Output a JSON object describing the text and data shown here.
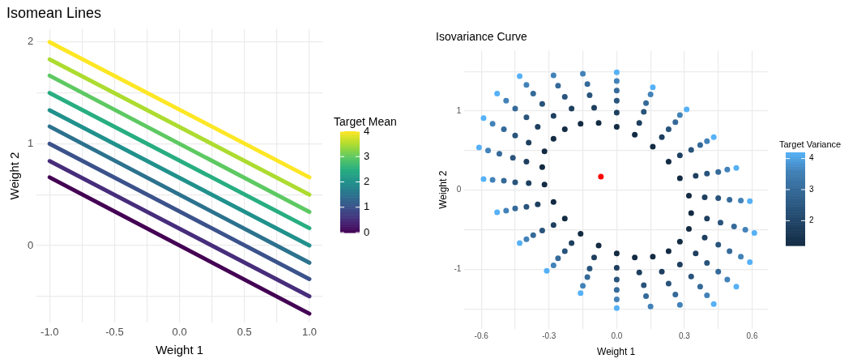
{
  "chart_data": [
    {
      "type": "line",
      "title": "Isomean Lines",
      "xlabel": "Weight 1",
      "ylabel": "Weight 2",
      "clabel": "Target Mean",
      "xlim": [
        -1.1,
        1.1
      ],
      "ylim": [
        -0.76,
        2.13
      ],
      "xticks": [
        {
          "value": -1,
          "label": "-1.0"
        },
        {
          "value": -0.75,
          "label": null
        },
        {
          "value": -0.5,
          "label": "-0.5"
        },
        {
          "value": -0.25,
          "label": null
        },
        {
          "value": 0,
          "label": "0.0"
        },
        {
          "value": 0.25,
          "label": null
        },
        {
          "value": 0.5,
          "label": "0.5"
        },
        {
          "value": 0.75,
          "label": null
        },
        {
          "value": 1,
          "label": "1.0"
        }
      ],
      "yticks": [
        {
          "value": -0.5,
          "label": null
        },
        0,
        {
          "value": 0.5,
          "label": null
        },
        1,
        {
          "value": 1.5,
          "label": null
        },
        2
      ],
      "clim": [
        0,
        4
      ],
      "cticks": [
        0,
        1,
        2,
        3,
        4
      ],
      "grid": true,
      "series": [
        {
          "color": "#440154",
          "x": [
            -1,
            1
          ],
          "values": [
            0.67,
            -0.67
          ]
        },
        {
          "color": "#472d7b",
          "x": [
            -1,
            1
          ],
          "values": [
            0.83,
            -0.5
          ]
        },
        {
          "color": "#3b528b",
          "x": [
            -1,
            1
          ],
          "values": [
            1.0,
            -0.33
          ]
        },
        {
          "color": "#2c728e",
          "x": [
            -1,
            1
          ],
          "values": [
            1.17,
            -0.17
          ]
        },
        {
          "color": "#21918c",
          "x": [
            -1,
            1
          ],
          "values": [
            1.33,
            0
          ]
        },
        {
          "color": "#28ae80",
          "x": [
            -1,
            1
          ],
          "values": [
            1.5,
            0.17
          ]
        },
        {
          "color": "#5ec962",
          "x": [
            -1,
            1
          ],
          "values": [
            1.67,
            0.33
          ]
        },
        {
          "color": "#addc30",
          "x": [
            -1,
            1
          ],
          "values": [
            1.83,
            0.5
          ]
        },
        {
          "color": "#fde725",
          "x": [
            -1,
            1
          ],
          "values": [
            2.0,
            0.67
          ]
        }
      ]
    },
    {
      "type": "scatter",
      "title": "Isovariance Curve",
      "xlabel": "Weight 1",
      "ylabel": "Weight 2",
      "clabel": "Target Variance",
      "xlim": [
        -0.675,
        0.67
      ],
      "ylim": [
        -1.75,
        1.76
      ],
      "xticks": [
        -0.6,
        {
          "value": -0.45,
          "label": null
        },
        -0.3,
        {
          "value": -0.15,
          "label": null
        },
        {
          "value": 0,
          "label": "0.0"
        },
        {
          "value": 0.15,
          "label": null
        },
        0.3,
        {
          "value": 0.45,
          "label": null
        },
        0.6
      ],
      "yticks": [
        {
          "value": -1.5,
          "label": null
        },
        -1,
        {
          "value": -0.5,
          "label": null
        },
        0,
        {
          "value": 0.5,
          "label": null
        },
        1,
        {
          "value": 1.5,
          "label": null
        }
      ],
      "clim": [
        1.2,
        4.2
      ],
      "cticks": [
        2,
        3,
        4
      ],
      "grid": true,
      "series": [
        {
          "color": "#132b43",
          "x": [
            0.33,
            0.32,
            0.28,
            0.23,
            0.16,
            0.08,
            0,
            -0.08,
            -0.16,
            -0.23,
            -0.28,
            -0.32,
            -0.33,
            -0.32,
            -0.28,
            -0.23,
            -0.16,
            -0.08,
            0,
            0.08,
            0.16,
            0.23,
            0.28,
            0.32
          ],
          "values": [
            -0.29,
            -0.07,
            0.15,
            0.36,
            0.55,
            0.7,
            0.8,
            0.85,
            0.84,
            0.77,
            0.65,
            0.49,
            0.29,
            0.07,
            -0.15,
            -0.36,
            -0.55,
            -0.7,
            -0.8,
            -0.85,
            -0.84,
            -0.77,
            -0.65,
            -0.49
          ]
        },
        {
          "color": "#1e3f5f",
          "x": [
            0.4,
            0.39,
            0.35,
            0.28,
            0.2,
            0.1,
            0,
            -0.1,
            -0.2,
            -0.28,
            -0.35,
            -0.39,
            -0.4,
            -0.39,
            -0.35,
            -0.28,
            -0.2,
            -0.1,
            0,
            0.1,
            0.2,
            0.28,
            0.35,
            0.39
          ],
          "values": [
            -0.36,
            -0.09,
            0.18,
            0.44,
            0.67,
            0.85,
            0.98,
            1.04,
            1.03,
            0.94,
            0.8,
            0.6,
            0.36,
            0.09,
            -0.18,
            -0.44,
            -0.67,
            -0.85,
            -0.98,
            -1.04,
            -1.03,
            -0.94,
            -0.8,
            -0.6
          ]
        },
        {
          "color": "#29547b",
          "x": [
            0.46,
            0.45,
            0.4,
            0.33,
            0.23,
            0.12,
            0,
            -0.12,
            -0.23,
            -0.33,
            -0.4,
            -0.45,
            -0.46,
            -0.45,
            -0.4,
            -0.33,
            -0.23,
            -0.12,
            0,
            0.12,
            0.23,
            0.33,
            0.4,
            0.45
          ],
          "values": [
            -0.41,
            -0.1,
            0.21,
            0.51,
            0.77,
            0.99,
            1.13,
            1.2,
            1.18,
            1.09,
            0.92,
            0.69,
            0.41,
            0.1,
            -0.21,
            -0.51,
            -0.77,
            -0.99,
            -1.13,
            -1.2,
            -1.18,
            -1.09,
            -0.92,
            -0.69
          ]
        },
        {
          "color": "#356a99",
          "x": [
            0.52,
            0.5,
            0.45,
            0.37,
            0.26,
            0.13,
            0,
            -0.13,
            -0.26,
            -0.37,
            -0.45,
            -0.5,
            -0.52,
            -0.5,
            -0.45,
            -0.37,
            -0.26,
            -0.13,
            0,
            0.13,
            0.26,
            0.37,
            0.45,
            0.5
          ],
          "values": [
            -0.46,
            -0.12,
            0.23,
            0.57,
            0.86,
            1.1,
            1.26,
            1.34,
            1.32,
            1.22,
            1.03,
            0.77,
            0.46,
            0.12,
            -0.23,
            -0.57,
            -0.86,
            -1.1,
            -1.26,
            -1.34,
            -1.32,
            -1.22,
            -1.03,
            -0.77
          ]
        },
        {
          "color": "#4282b8",
          "x": [
            0.57,
            0.55,
            0.49,
            0.4,
            0.28,
            0.15,
            0,
            -0.15,
            -0.28,
            -0.4,
            -0.49,
            -0.55,
            -0.57,
            -0.55,
            -0.49,
            -0.4,
            -0.28,
            -0.15,
            0,
            0.15,
            0.28,
            0.4,
            0.49,
            0.55
          ],
          "values": [
            -0.5,
            -0.13,
            0.26,
            0.62,
            0.95,
            1.21,
            1.38,
            1.47,
            1.45,
            1.33,
            1.13,
            0.84,
            0.5,
            0.13,
            -0.26,
            -0.62,
            -0.95,
            -1.21,
            -1.38,
            -1.47,
            -1.45,
            -1.33,
            -1.13,
            -0.84
          ]
        },
        {
          "color": "#56b1f7",
          "x": [
            0.61,
            0.59,
            0.53,
            0.43,
            0.31,
            0.16,
            0,
            -0.16,
            -0.31,
            -0.43,
            -0.53,
            -0.59,
            -0.61,
            -0.59,
            -0.53,
            -0.43,
            -0.31,
            -0.16,
            0,
            0.16,
            0.31,
            0.43,
            0.53,
            0.59
          ],
          "values": [
            -0.54,
            -0.14,
            0.28,
            0.67,
            1.02,
            1.3,
            1.49,
            null,
            null,
            1.44,
            1.22,
            0.91,
            0.54,
            0.14,
            -0.28,
            -0.67,
            -1.02,
            -1.3,
            -1.49,
            null,
            null,
            -1.44,
            -1.22,
            -0.91
          ]
        },
        {
          "color": "#ff0000",
          "x": [
            -0.07
          ],
          "values": [
            0.17
          ]
        }
      ]
    }
  ]
}
